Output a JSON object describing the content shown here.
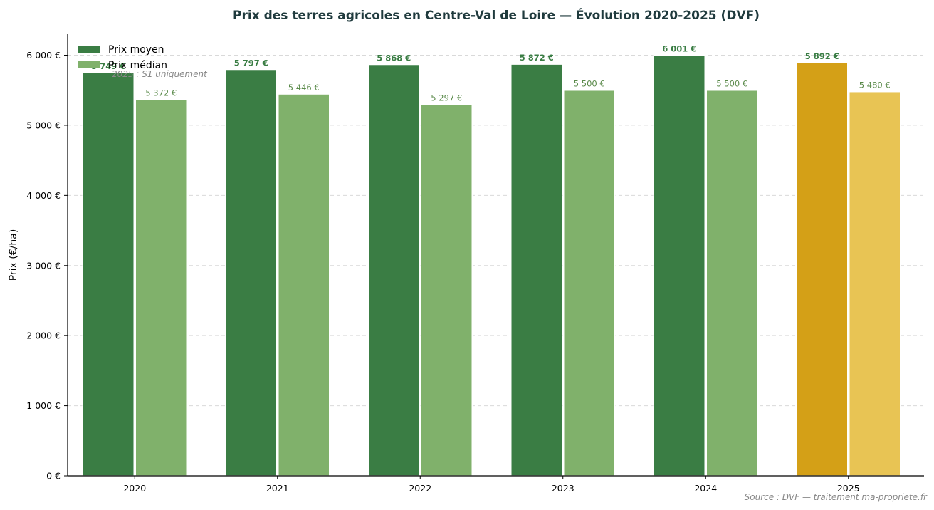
{
  "chart_data": {
    "type": "bar",
    "title": "Prix des terres agricoles en Centre-Val de Loire — Évolution 2020-2025 (DVF)",
    "xlabel": "",
    "ylabel": "Prix (€/ha)",
    "categories": [
      "2020",
      "2021",
      "2022",
      "2023",
      "2024",
      "2025"
    ],
    "series": [
      {
        "name": "Prix moyen",
        "values": [
          5749,
          5797,
          5868,
          5872,
          6001,
          5892
        ],
        "labels": [
          "5 749 €",
          "5 797 €",
          "5 868 €",
          "5 872 €",
          "6 001 €",
          "5 892 €"
        ],
        "color": "#3a7d44",
        "highlight_color": "#d4a017"
      },
      {
        "name": "Prix médian",
        "values": [
          5372,
          5446,
          5297,
          5500,
          5500,
          5480
        ],
        "labels": [
          "5 372 €",
          "5 446 €",
          "5 297 €",
          "5 500 €",
          "5 500 €",
          "5 480 €"
        ],
        "color": "#80b16b",
        "highlight_color": "#e8c454"
      }
    ],
    "highlight_category": "2025",
    "ylim": [
      0,
      6300
    ],
    "yticks": [
      0,
      1000,
      2000,
      3000,
      4000,
      5000,
      6000
    ],
    "ytick_labels": [
      "0 €",
      "1 000 €",
      "2 000 €",
      "3 000 €",
      "4 000 €",
      "5 000 €",
      "6 000 €"
    ],
    "grid": "horizontal dashed",
    "legend_position": "top-left",
    "annotation": "2025 : S1 uniquement",
    "source": "Source : DVF — traitement ma-propriete.fr"
  }
}
